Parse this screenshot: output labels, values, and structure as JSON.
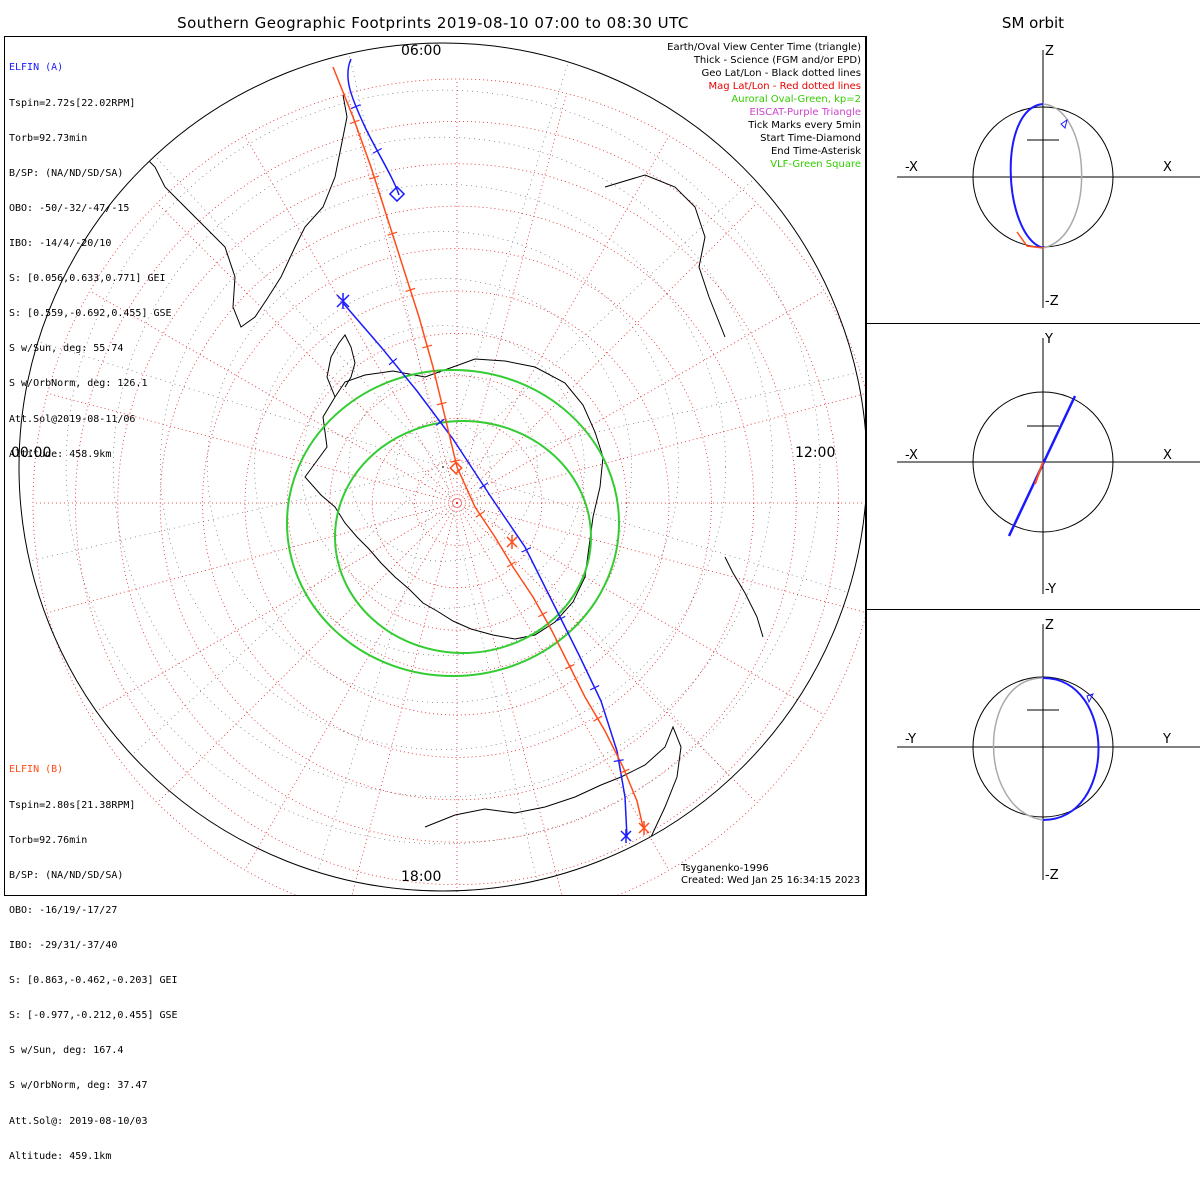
{
  "title": "Southern Geographic Footprints 2019-08-10 07:00 to 08:30 UTC",
  "right_title": "SM orbit",
  "elfin_a": {
    "header": "ELFIN (A)",
    "lines": [
      "Tspin=2.72s[22.02RPM]",
      "Torb=92.73min",
      "B/SP: (NA/ND/SD/SA)",
      "OBO: -50/-32/-47/-15",
      "IBO: -14/4/-20/10",
      "S: [0.056,0.633,0.771] GEI",
      "S: [0.559,-0.692,0.455] GSE",
      "S w/Sun, deg: 55.74",
      "S w/OrbNorm, deg: 126.1",
      "Att.Sol@2019-08-11/06",
      "Altitude: 458.9km"
    ],
    "color": "#1a1aff"
  },
  "elfin_b": {
    "header": "ELFIN (B)",
    "lines": [
      "Tspin=2.80s[21.38RPM]",
      "Torb=92.76min",
      "B/SP: (NA/ND/SD/SA)",
      "OBO: -16/19/-17/27",
      "IBO: -29/31/-37/40",
      "S: [0.863,-0.462,-0.203] GEI",
      "S: [-0.977,-0.212,0.455] GSE",
      "S w/Sun, deg: 167.4",
      "S w/OrbNorm, deg: 37.47",
      "Att.Sol@: 2019-08-10/03",
      "Altitude: 459.1km"
    ],
    "color": "#ff4c1a"
  },
  "legend": [
    {
      "text": "Earth/Oval View Center Time (triangle)",
      "color": "#000000"
    },
    {
      "text": "Thick - Science (FGM and/or EPD)",
      "color": "#000000"
    },
    {
      "text": "Geo Lat/Lon - Black dotted lines",
      "color": "#000000"
    },
    {
      "text": "Mag Lat/Lon - Red dotted lines",
      "color": "#e60000"
    },
    {
      "text": "Auroral Oval-Green, kp=2",
      "color": "#33cc00"
    },
    {
      "text": "EISCAT-Purple Triangle",
      "color": "#cc44cc"
    },
    {
      "text": "Tick Marks every 5min",
      "color": "#000000"
    },
    {
      "text": "Start Time-Diamond",
      "color": "#000000"
    },
    {
      "text": "End Time-Asterisk",
      "color": "#000000"
    },
    {
      "text": "VLF-Green Square",
      "color": "#33cc00"
    }
  ],
  "time_labels": {
    "top": "06:00",
    "left": "00:00",
    "right": "12:00",
    "bottom": "18:00"
  },
  "footer": {
    "line1": "Tsyganenko-1996",
    "line2": "Created: Wed Jan 25 16:34:15 2023"
  },
  "sm_panels": [
    {
      "top": "Z",
      "bottom": "-Z",
      "left": "-X",
      "right": "X"
    },
    {
      "top": "Y",
      "bottom": "-Y",
      "left": "-X",
      "right": "X"
    },
    {
      "top": "Z",
      "bottom": "-Z",
      "left": "-Y",
      "right": "Y"
    }
  ],
  "colors": {
    "elfin_a": "#1a1aff",
    "elfin_b": "#ff4c1a",
    "oval": "#33cc33",
    "mag_grid": "#e62020",
    "geo_grid": "#000000"
  },
  "chart_data": {
    "type": "scatter",
    "title": "Southern Geographic Footprints 2019-08-10 07:00 to 08:30 UTC",
    "projection": "polar, south pole",
    "series": [
      {
        "name": "ELFIN (A)",
        "color": "#1a1aff"
      },
      {
        "name": "ELFIN (B)",
        "color": "#ff4c1a"
      }
    ],
    "mlt_labels": [
      "06:00",
      "12:00",
      "18:00",
      "00:00"
    ],
    "auroral_oval_kp": 2
  }
}
